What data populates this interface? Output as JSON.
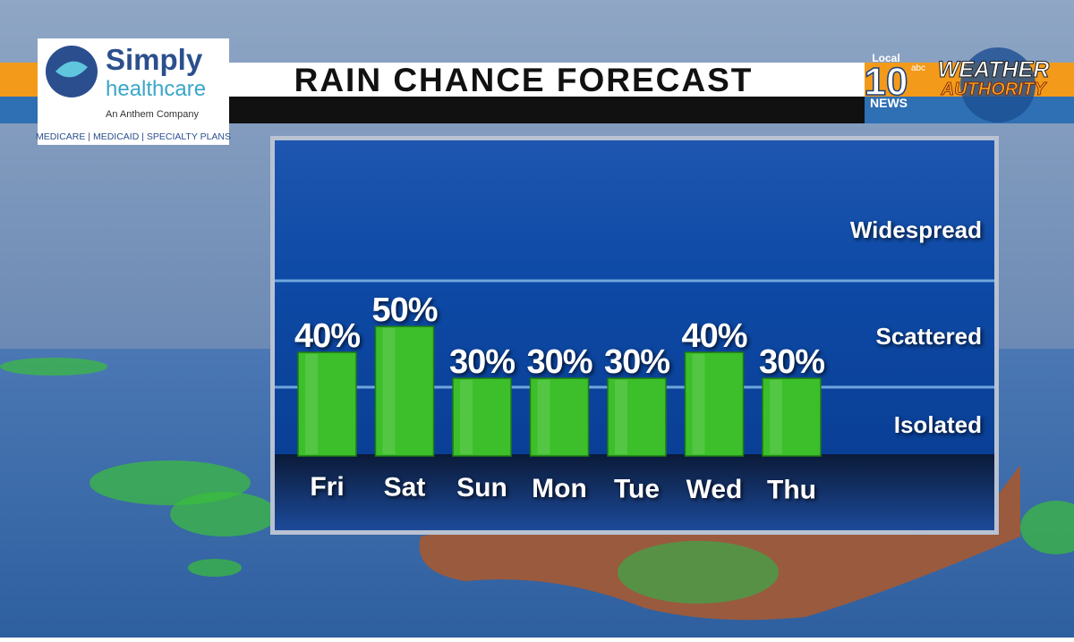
{
  "chart_data": {
    "type": "bar",
    "title": "RAIN CHANCE FORECAST",
    "categories": [
      "Fri",
      "Sat",
      "Sun",
      "Mon",
      "Tue",
      "Wed",
      "Thu"
    ],
    "values": [
      40,
      50,
      30,
      30,
      30,
      40,
      30
    ],
    "value_labels": [
      "40%",
      "50%",
      "30%",
      "30%",
      "30%",
      "40%",
      "30%"
    ],
    "color": "#3cbf2a",
    "annotations": [
      "Widespread",
      "Scattered",
      "Isolated"
    ]
  },
  "sponsor": {
    "name_1": "Simply",
    "name_2": "healthcare",
    "tagline": "An Anthem Company",
    "plans": "MEDICARE | MEDICAID | SPECIALTY PLANS"
  },
  "station": {
    "local": "Local",
    "number": "10",
    "network": "abc",
    "news": "NEWS",
    "brand_1": "WEATHER",
    "brand_2": "AUTHORITY"
  }
}
